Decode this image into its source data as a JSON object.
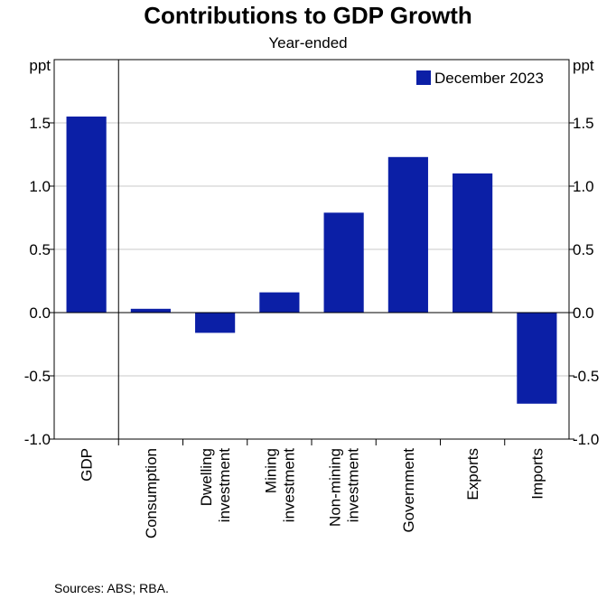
{
  "chart_data": {
    "type": "bar",
    "title": "Contributions to GDP Growth",
    "subtitle": "Year-ended",
    "ylabel_left": "ppt",
    "ylabel_right": "ppt",
    "ylim": [
      -1.0,
      2.0
    ],
    "yticks": [
      -1.0,
      -0.5,
      0.0,
      0.5,
      1.0,
      1.5
    ],
    "ytick_labels": [
      "-1.0",
      "-0.5",
      "0.0",
      "0.5",
      "1.0",
      "1.5"
    ],
    "grid": true,
    "legend_position": "top-right",
    "series": [
      {
        "name": "December 2023",
        "color": "#0b1fa6",
        "values": [
          1.55,
          0.03,
          -0.16,
          0.16,
          0.79,
          1.23,
          1.1,
          -0.72
        ]
      }
    ],
    "categories": [
      [
        "GDP"
      ],
      [
        "Consumption"
      ],
      [
        "Dwelling",
        "investment"
      ],
      [
        "Mining",
        "investment"
      ],
      [
        "Non-mining",
        "investment"
      ],
      [
        "Government"
      ],
      [
        "Exports"
      ],
      [
        "Imports"
      ]
    ],
    "source": "Sources: ABS; RBA."
  }
}
